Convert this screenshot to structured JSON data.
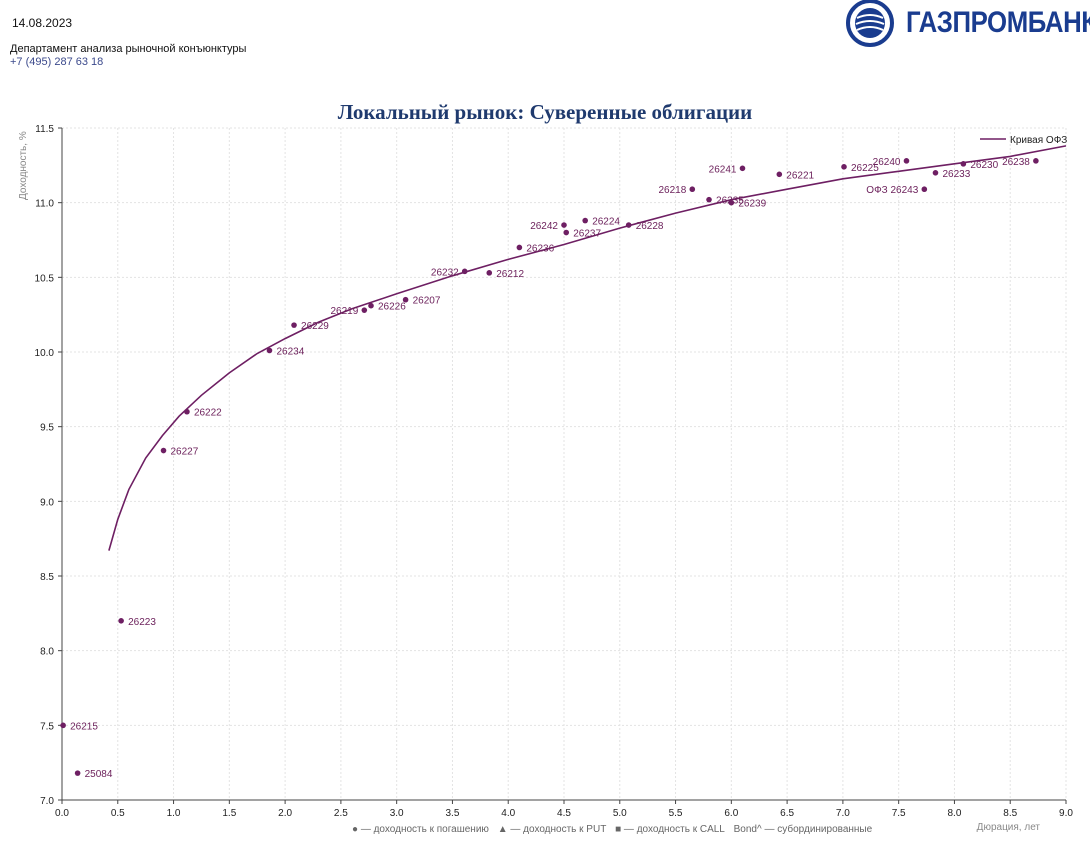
{
  "header": {
    "date": "14.08.2023",
    "department": "Департамент анализа рыночной конъюнктуры",
    "phone": "+7 (495) 287 63 18",
    "logo_text": "ГАЗПРОМБАНК",
    "brand_color": "#1a3c8f"
  },
  "footer_legend": {
    "item_ytm": "● — доходность к погашению",
    "item_put": "▲ — доходность к PUT",
    "item_call": "■ — доходность к CALL",
    "item_bond": "Bond^ — субординированные"
  },
  "chart_data": {
    "type": "scatter",
    "title": "Локальный рынок: Суверенные облигации",
    "xlabel": "Дюрация, лет",
    "ylabel": "Доходность, %",
    "xlim": [
      0.0,
      9.0
    ],
    "ylim": [
      7.0,
      11.5
    ],
    "x_ticks": [
      "0.0",
      "0.5",
      "1.0",
      "1.5",
      "2.0",
      "2.5",
      "3.0",
      "3.5",
      "4.0",
      "4.5",
      "5.0",
      "5.5",
      "6.0",
      "6.5",
      "7.0",
      "7.5",
      "8.0",
      "8.5",
      "9.0"
    ],
    "y_ticks": [
      "7.0",
      "7.5",
      "8.0",
      "8.5",
      "9.0",
      "9.5",
      "10.0",
      "10.5",
      "11.0",
      "11.5"
    ],
    "grid": true,
    "legend_position": "top-right",
    "point_color": "#6e1f63",
    "curve_color": "#6e1f63",
    "curve": {
      "name": "Кривая ОФЗ",
      "x": [
        0.42,
        0.5,
        0.6,
        0.75,
        0.9,
        1.05,
        1.25,
        1.5,
        1.75,
        2.0,
        2.3,
        2.6,
        3.0,
        3.5,
        4.0,
        4.5,
        5.0,
        5.5,
        6.0,
        6.5,
        7.0,
        7.5,
        8.0,
        8.5,
        9.0
      ],
      "y": [
        8.67,
        8.88,
        9.08,
        9.29,
        9.44,
        9.57,
        9.71,
        9.86,
        9.99,
        10.09,
        10.2,
        10.29,
        10.39,
        10.51,
        10.62,
        10.72,
        10.83,
        10.93,
        11.02,
        11.09,
        11.16,
        11.21,
        11.26,
        11.31,
        11.38
      ]
    },
    "points": [
      {
        "label": "26215",
        "x": 0.01,
        "y": 7.5,
        "side": "right"
      },
      {
        "label": "25084",
        "x": 0.14,
        "y": 7.18,
        "side": "right"
      },
      {
        "label": "26223",
        "x": 0.53,
        "y": 8.2,
        "side": "right"
      },
      {
        "label": "26227",
        "x": 0.91,
        "y": 9.34,
        "side": "right"
      },
      {
        "label": "26222",
        "x": 1.12,
        "y": 9.6,
        "side": "right"
      },
      {
        "label": "26234",
        "x": 1.86,
        "y": 10.01,
        "side": "right"
      },
      {
        "label": "26229",
        "x": 2.08,
        "y": 10.18,
        "side": "right"
      },
      {
        "label": "26219",
        "x": 2.71,
        "y": 10.28,
        "side": "left"
      },
      {
        "label": "26226",
        "x": 2.77,
        "y": 10.31,
        "side": "right"
      },
      {
        "label": "26207",
        "x": 3.08,
        "y": 10.35,
        "side": "right"
      },
      {
        "label": "26232",
        "x": 3.61,
        "y": 10.54,
        "side": "left"
      },
      {
        "label": "26212",
        "x": 3.83,
        "y": 10.53,
        "side": "right"
      },
      {
        "label": "26236",
        "x": 4.1,
        "y": 10.7,
        "side": "right"
      },
      {
        "label": "26242",
        "x": 4.5,
        "y": 10.85,
        "side": "left"
      },
      {
        "label": "26237",
        "x": 4.52,
        "y": 10.8,
        "side": "right"
      },
      {
        "label": "26224",
        "x": 4.69,
        "y": 10.88,
        "side": "right"
      },
      {
        "label": "26228",
        "x": 5.08,
        "y": 10.85,
        "side": "right"
      },
      {
        "label": "26218",
        "x": 5.65,
        "y": 11.09,
        "side": "left"
      },
      {
        "label": "26235",
        "x": 5.8,
        "y": 11.02,
        "side": "right"
      },
      {
        "label": "26239",
        "x": 6.0,
        "y": 11.0,
        "side": "right"
      },
      {
        "label": "26241",
        "x": 6.1,
        "y": 11.23,
        "side": "left"
      },
      {
        "label": "26221",
        "x": 6.43,
        "y": 11.19,
        "side": "right"
      },
      {
        "label": "26225",
        "x": 7.01,
        "y": 11.24,
        "side": "right"
      },
      {
        "label": "26240",
        "x": 7.57,
        "y": 11.28,
        "side": "left"
      },
      {
        "label": "ОФЗ 26243",
        "x": 7.73,
        "y": 11.09,
        "side": "left"
      },
      {
        "label": "26233",
        "x": 7.83,
        "y": 11.2,
        "side": "right"
      },
      {
        "label": "26230",
        "x": 8.08,
        "y": 11.26,
        "side": "right"
      },
      {
        "label": "26238",
        "x": 8.73,
        "y": 11.28,
        "side": "left"
      }
    ]
  }
}
